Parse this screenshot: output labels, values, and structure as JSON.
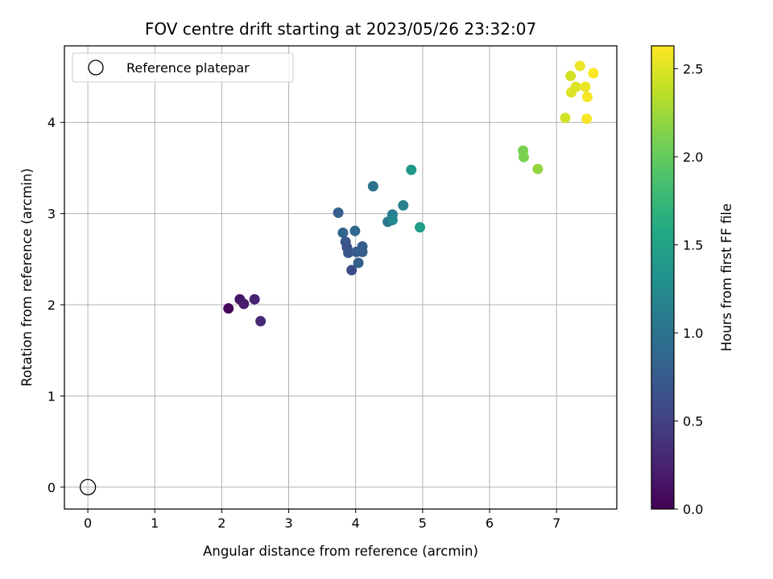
{
  "chart_data": {
    "type": "scatter",
    "title": "FOV centre drift starting at 2023/05/26 23:32:07",
    "xlabel": "Angular distance from reference (arcmin)",
    "ylabel": "Rotation from reference (arcmin)",
    "xlim": [
      -0.35,
      7.9
    ],
    "ylim": [
      -0.24,
      4.84
    ],
    "xticks": [
      0,
      1,
      2,
      3,
      4,
      5,
      6,
      7
    ],
    "yticks": [
      0,
      1,
      2,
      3,
      4
    ],
    "grid": true,
    "legend": {
      "placement": "upper-left",
      "entries": [
        {
          "label": "Reference platepar",
          "marker": "open-circle",
          "x": 0,
          "y": 0
        }
      ]
    },
    "colorbar": {
      "label": "Hours from first FF file",
      "colormap": "viridis",
      "range": [
        0.0,
        2.63
      ],
      "ticks": [
        "0.0",
        "0.5",
        "1.0",
        "1.5",
        "2.0",
        "2.5"
      ]
    },
    "series": [
      {
        "points": [
          {
            "x": 2.1,
            "y": 1.96,
            "c": 0.05
          },
          {
            "x": 2.27,
            "y": 2.06,
            "c": 0.15
          },
          {
            "x": 2.33,
            "y": 2.01,
            "c": 0.2
          },
          {
            "x": 2.49,
            "y": 2.06,
            "c": 0.25
          },
          {
            "x": 2.58,
            "y": 1.82,
            "c": 0.3
          },
          {
            "x": 3.74,
            "y": 3.01,
            "c": 0.8
          },
          {
            "x": 3.81,
            "y": 2.79,
            "c": 0.85
          },
          {
            "x": 3.85,
            "y": 2.69,
            "c": 0.7
          },
          {
            "x": 3.87,
            "y": 2.63,
            "c": 0.65
          },
          {
            "x": 3.89,
            "y": 2.57,
            "c": 0.72
          },
          {
            "x": 3.94,
            "y": 2.38,
            "c": 0.6
          },
          {
            "x": 3.99,
            "y": 2.81,
            "c": 0.88
          },
          {
            "x": 4.01,
            "y": 2.58,
            "c": 0.75
          },
          {
            "x": 4.04,
            "y": 2.46,
            "c": 0.82
          },
          {
            "x": 4.1,
            "y": 2.64,
            "c": 0.78
          },
          {
            "x": 4.1,
            "y": 2.58,
            "c": 0.8
          },
          {
            "x": 4.26,
            "y": 3.3,
            "c": 1.0
          },
          {
            "x": 4.48,
            "y": 2.91,
            "c": 1.05
          },
          {
            "x": 4.55,
            "y": 2.99,
            "c": 1.1
          },
          {
            "x": 4.55,
            "y": 2.93,
            "c": 1.2
          },
          {
            "x": 4.71,
            "y": 3.09,
            "c": 1.15
          },
          {
            "x": 4.83,
            "y": 3.48,
            "c": 1.4
          },
          {
            "x": 4.96,
            "y": 2.85,
            "c": 1.45
          },
          {
            "x": 6.5,
            "y": 3.69,
            "c": 2.1
          },
          {
            "x": 6.51,
            "y": 3.62,
            "c": 2.1
          },
          {
            "x": 6.72,
            "y": 3.49,
            "c": 2.2
          },
          {
            "x": 7.13,
            "y": 4.05,
            "c": 2.45
          },
          {
            "x": 7.21,
            "y": 4.51,
            "c": 2.45
          },
          {
            "x": 7.22,
            "y": 4.33,
            "c": 2.5
          },
          {
            "x": 7.29,
            "y": 4.39,
            "c": 2.5
          },
          {
            "x": 7.35,
            "y": 4.62,
            "c": 2.55
          },
          {
            "x": 7.43,
            "y": 4.39,
            "c": 2.55
          },
          {
            "x": 7.45,
            "y": 4.04,
            "c": 2.6
          },
          {
            "x": 7.46,
            "y": 4.28,
            "c": 2.6
          },
          {
            "x": 7.55,
            "y": 4.54,
            "c": 2.62
          }
        ]
      }
    ]
  }
}
